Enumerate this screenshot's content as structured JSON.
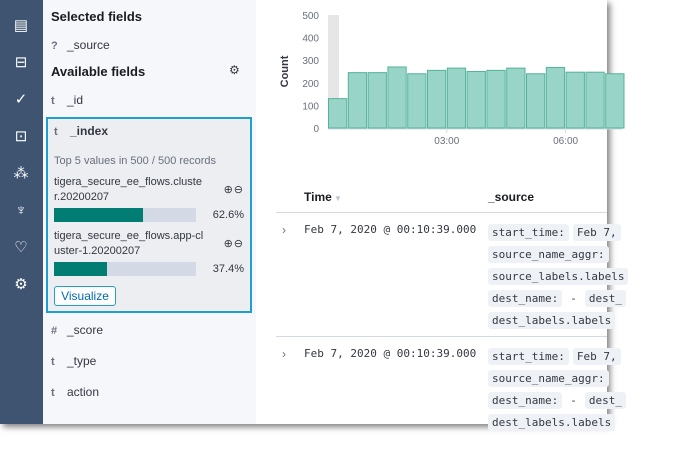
{
  "nav": {
    "icons": [
      "discover-icon",
      "visualize-icon",
      "dashboard-icon",
      "security-icon",
      "graph-icon",
      "dev-tools-icon",
      "monitoring-icon",
      "settings-icon"
    ]
  },
  "fields": {
    "selected_title": "Selected fields",
    "selected": [
      {
        "type": "?",
        "name": "_source"
      }
    ],
    "available_title": "Available fields",
    "available_before": [
      {
        "type": "t",
        "name": "_id"
      }
    ],
    "expanded": {
      "type": "t",
      "name": "_index",
      "summary": "Top 5 values in 500 / 500 records",
      "values": [
        {
          "label": "tigera_secure_ee_flows.cluster.20200207",
          "percent": 62.6,
          "percent_label": "62.6%"
        },
        {
          "label": "tigera_secure_ee_flows.app-cluster-1.20200207",
          "percent": 37.4,
          "percent_label": "37.4%"
        }
      ],
      "visualize_label": "Visualize"
    },
    "available_after": [
      {
        "type": "#",
        "name": "_score"
      },
      {
        "type": "t",
        "name": "_type"
      },
      {
        "type": "t",
        "name": "action"
      }
    ]
  },
  "chart_data": {
    "type": "bar",
    "ylabel": "Count",
    "xlabel": "",
    "ylim": [
      0,
      500
    ],
    "yticks": [
      "0",
      "100",
      "200",
      "300",
      "400",
      "500"
    ],
    "xticks": [
      "03:00",
      "06:00"
    ],
    "interval": "30m",
    "categories": [
      "00:00",
      "00:30",
      "01:00",
      "01:30",
      "02:00",
      "02:30",
      "03:00",
      "03:30",
      "04:00",
      "04:30",
      "05:00",
      "05:30",
      "06:00",
      "06:30",
      "07:00"
    ],
    "values": [
      130,
      245,
      245,
      270,
      240,
      255,
      265,
      250,
      255,
      265,
      240,
      268,
      247,
      247,
      240
    ],
    "color": "#54b399"
  },
  "table": {
    "headers": {
      "time": "Time",
      "source": "_source"
    },
    "rows": [
      {
        "time": "Feb 7, 2020 @ 00:10:39.000",
        "lines": [
          [
            "start_time:",
            "Feb 7,"
          ],
          [
            "source_name_aggr:"
          ],
          [
            "source_labels.labels"
          ],
          [
            "dest_name:",
            "-",
            "dest_"
          ],
          [
            "dest_labels.labels"
          ]
        ]
      },
      {
        "time": "Feb 7, 2020 @ 00:10:39.000",
        "lines": [
          [
            "start_time:",
            "Feb 7,"
          ],
          [
            "source_name_aggr:"
          ],
          [
            "dest_name:",
            "-",
            "dest_"
          ],
          [
            "dest_labels.labels"
          ]
        ]
      }
    ]
  }
}
